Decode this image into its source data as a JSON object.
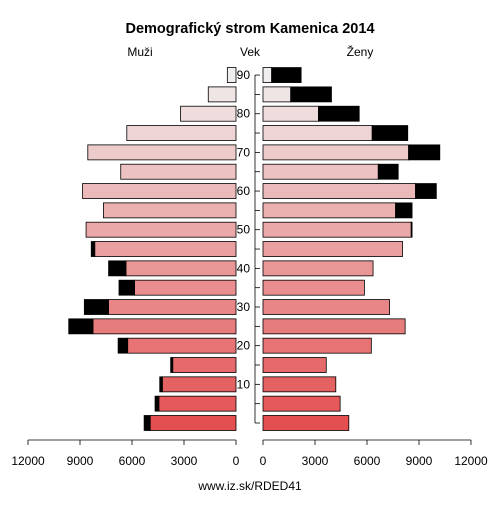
{
  "title": "Demografický strom Kamenica 2014",
  "header": {
    "left": "Muži",
    "center": "Vek",
    "right": "Ženy"
  },
  "footer": "www.iz.sk/RDED41",
  "colors": {
    "bar_dark": "#000000",
    "outline": "#000000"
  },
  "chart_data": {
    "type": "bar",
    "subtype": "population-pyramid",
    "title": "Demografický strom Kamenica 2014",
    "age_groups": [
      "0-4",
      "5-9",
      "10-14",
      "15-19",
      "20-24",
      "25-29",
      "30-34",
      "35-39",
      "40-44",
      "45-49",
      "50-54",
      "55-59",
      "60-64",
      "65-69",
      "70-74",
      "75-79",
      "80-84",
      "85-89",
      "90+"
    ],
    "age_tick_labels": [
      "10",
      "20",
      "30",
      "40",
      "50",
      "60",
      "70",
      "80",
      "90"
    ],
    "x_tick_labels_left": [
      "12000",
      "9000",
      "6000",
      "3000",
      "0"
    ],
    "x_tick_labels_right": [
      "0",
      "3000",
      "6000",
      "9000",
      "12000"
    ],
    "xlim": [
      0,
      12000
    ],
    "series": [
      {
        "name": "Muži",
        "base": [
          4950,
          4450,
          4250,
          3650,
          6250,
          8250,
          7350,
          5850,
          6350,
          8150,
          8650,
          7650,
          8850,
          6650,
          8550,
          6300,
          3200,
          1600,
          500
        ],
        "excess": [
          350,
          220,
          150,
          120,
          550,
          1400,
          1400,
          900,
          1000,
          200,
          0,
          0,
          0,
          0,
          0,
          0,
          0,
          0,
          0
        ]
      },
      {
        "name": "Ženy",
        "base": [
          4950,
          4450,
          4200,
          3650,
          6250,
          8200,
          7300,
          5850,
          6350,
          8050,
          8550,
          7650,
          8800,
          6650,
          8400,
          6300,
          3200,
          1600,
          500
        ],
        "excess": [
          0,
          0,
          0,
          0,
          0,
          0,
          0,
          0,
          0,
          0,
          50,
          950,
          1200,
          1150,
          1800,
          2050,
          2350,
          2350,
          1700
        ]
      }
    ]
  }
}
